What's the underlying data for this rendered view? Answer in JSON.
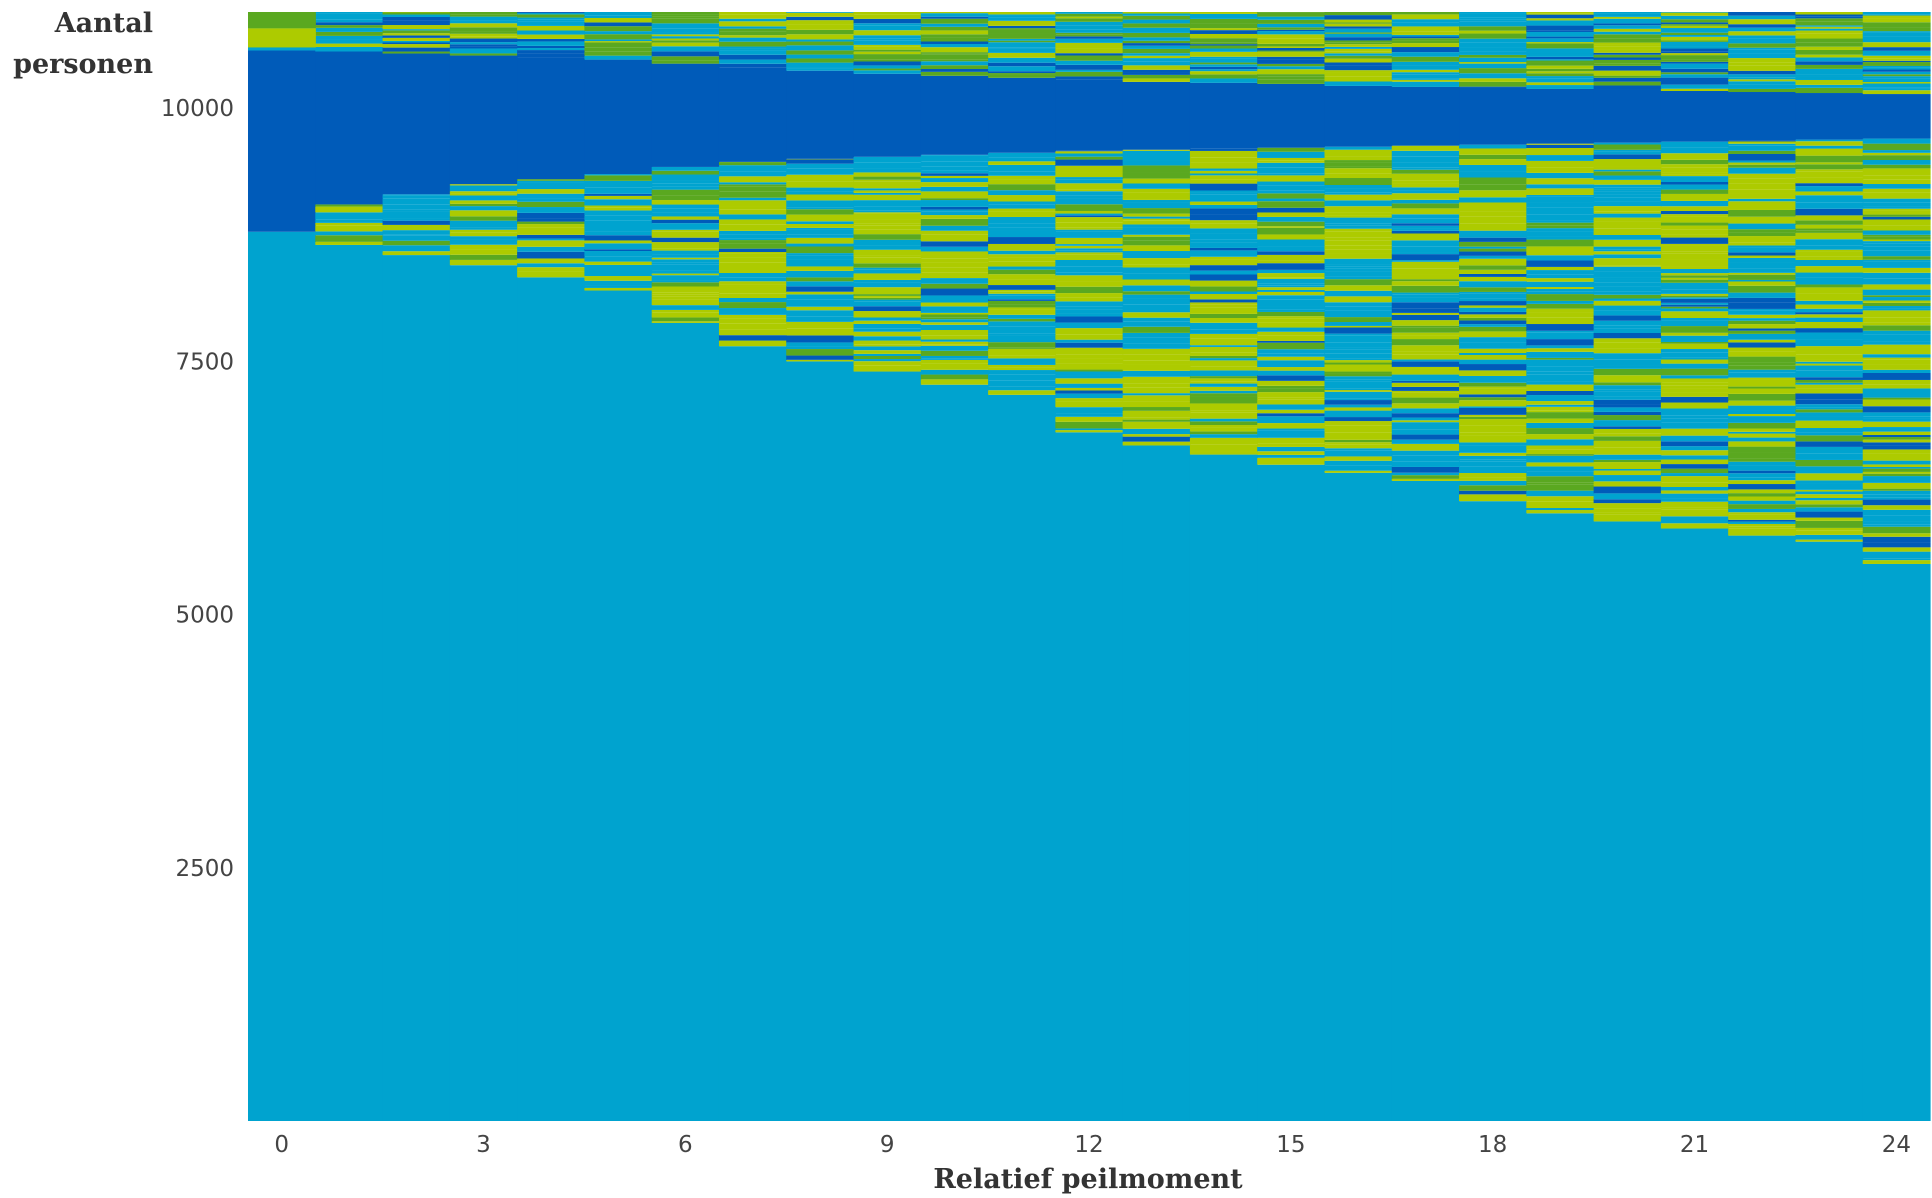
{
  "chart_data": {
    "type": "area",
    "title": "",
    "ylabel": [
      "Aantal",
      "personen"
    ],
    "xlabel": "Relatief peilmoment",
    "x_ticks": [
      0,
      3,
      6,
      9,
      12,
      15,
      18,
      21,
      24
    ],
    "y_ticks": [
      2500,
      5000,
      7500,
      10000
    ],
    "xlim": [
      -0.5,
      24.5
    ],
    "ylim": [
      0,
      10950
    ],
    "colors": {
      "light_blue": "#00a3cf",
      "dark_blue": "#005bb9",
      "lime": "#adcb00",
      "green": "#5aa820"
    },
    "base_light_blue_top": [
      8780,
      8650,
      8550,
      8450,
      8330,
      8200,
      7880,
      7650,
      7500,
      7400,
      7270,
      7170,
      6800,
      6670,
      6580,
      6480,
      6400,
      6320,
      6120,
      6000,
      5920,
      5850,
      5780,
      5720,
      5500
    ],
    "dark_blue_band_bottom": [
      8780,
      9050,
      9150,
      9250,
      9300,
      9350,
      9420,
      9470,
      9500,
      9520,
      9540,
      9560,
      9580,
      9590,
      9600,
      9610,
      9620,
      9630,
      9640,
      9650,
      9660,
      9670,
      9680,
      9690,
      9700
    ],
    "dark_blue_band_top": [
      10570,
      10560,
      10540,
      10520,
      10500,
      10480,
      10440,
      10400,
      10370,
      10340,
      10320,
      10300,
      10280,
      10260,
      10250,
      10240,
      10220,
      10210,
      10200,
      10190,
      10180,
      10170,
      10160,
      10150,
      10140
    ],
    "total": 10950
  }
}
